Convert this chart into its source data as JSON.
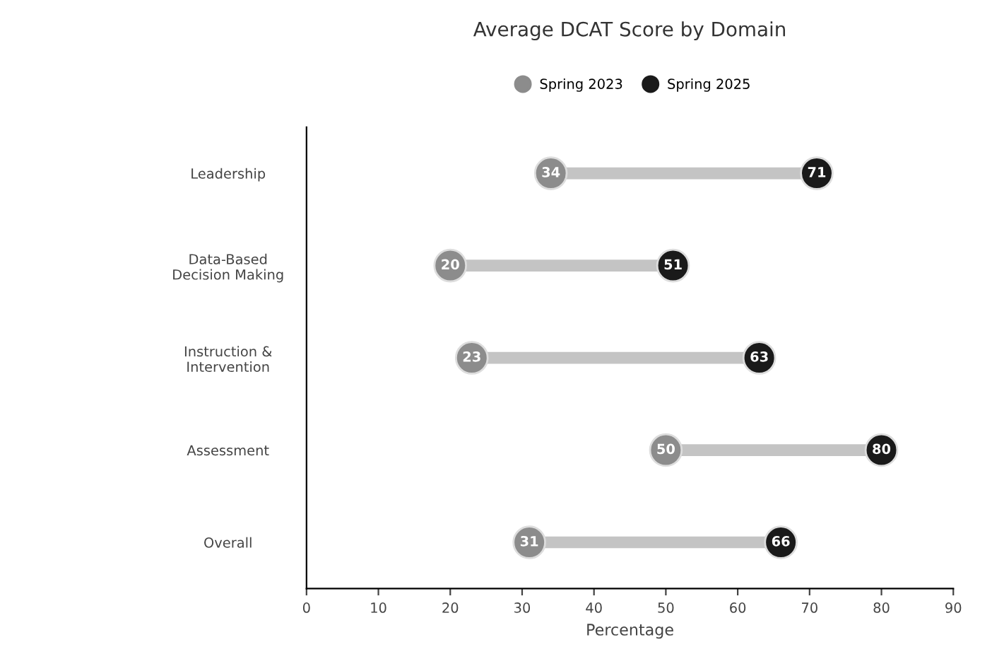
{
  "chart_data": {
    "type": "scatter",
    "title": "Average DCAT Score by Domain",
    "xlabel": "Percentage",
    "orientation": "horizontal",
    "categories": [
      "Leadership",
      "Data-Based\nDecision Making",
      "Instruction &\nIntervention",
      "Assessment",
      "Overall"
    ],
    "series": [
      {
        "name": "Spring 2023",
        "color": "#8c8c8c",
        "values": [
          34,
          20,
          23,
          50,
          31
        ]
      },
      {
        "name": "Spring 2025",
        "color": "#1a1a1a",
        "values": [
          71,
          51,
          63,
          80,
          66
        ]
      }
    ],
    "xlim": [
      0,
      90
    ],
    "xticks": [
      0,
      10,
      20,
      30,
      40,
      50,
      60,
      70,
      80,
      90
    ],
    "data_labels": true,
    "legend": "top",
    "grid": false,
    "marker": "circle"
  }
}
